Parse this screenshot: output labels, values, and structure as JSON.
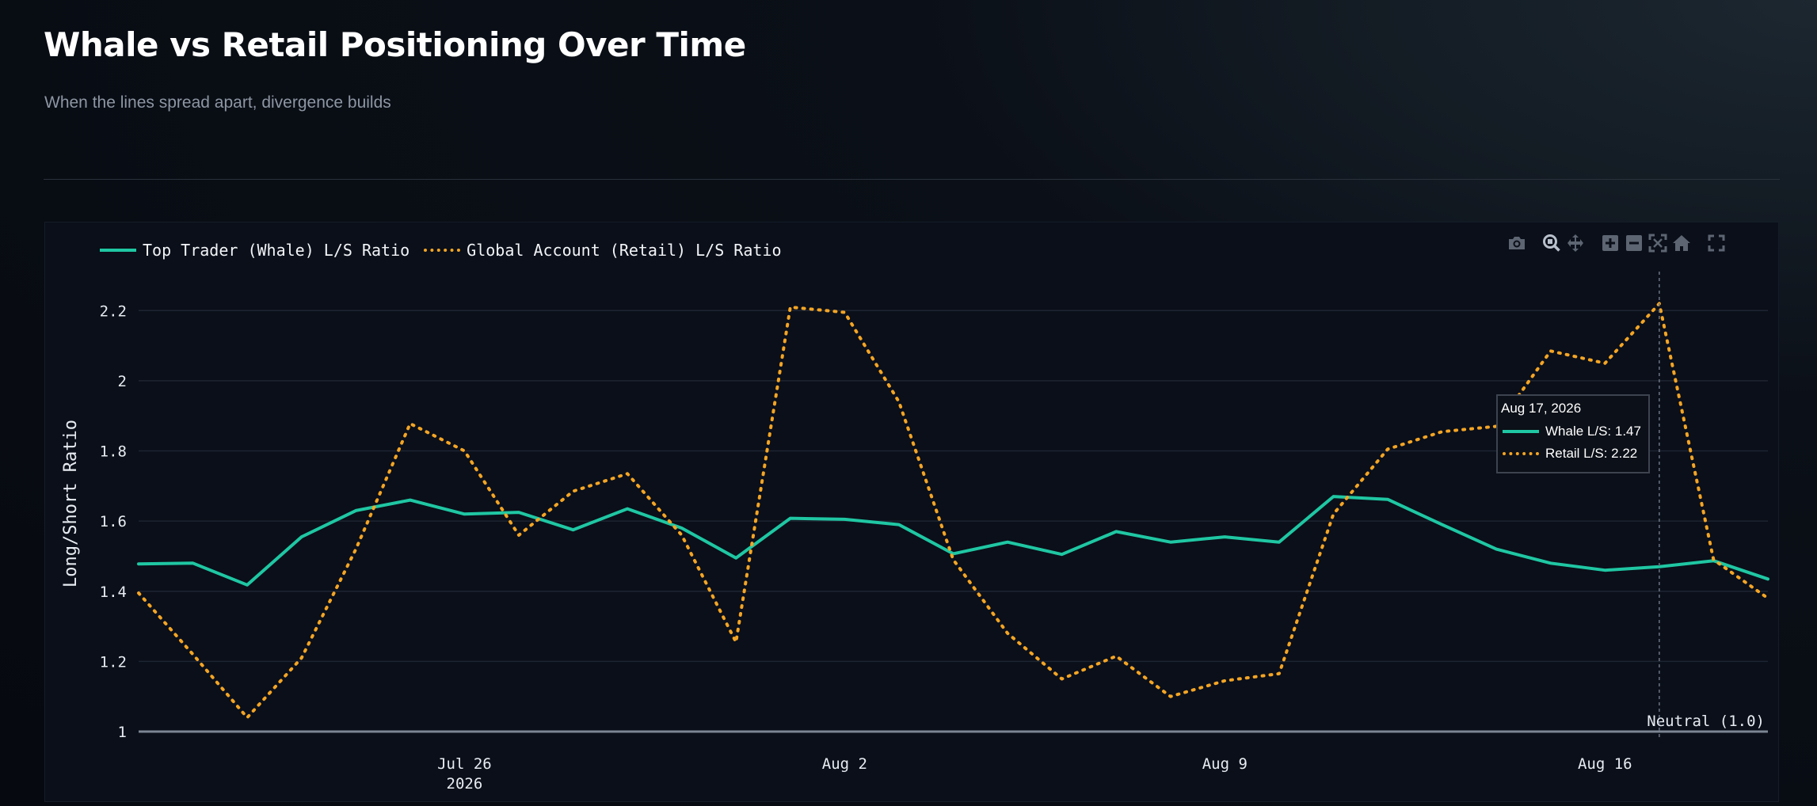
{
  "page": {
    "title": "Whale vs Retail Positioning Over Time",
    "subtitle": "When the lines spread apart, divergence builds"
  },
  "colors": {
    "whale": "#1fc7a3",
    "retail": "#f5a524",
    "grid": "#1e2532",
    "tick_text": "#e8ecf2"
  },
  "modebar": {
    "icons": [
      "camera-icon",
      "zoom-icon",
      "pan-icon",
      "zoom-in-icon",
      "zoom-out-icon",
      "autoscale-icon",
      "reset-axes-icon",
      "fullscreen-icon"
    ]
  },
  "tooltip": {
    "date": "Aug 17, 2026",
    "whale_text": "Whale L/S: 1.47",
    "retail_text": "Retail L/S: 2.22"
  },
  "chart_data": {
    "type": "line",
    "title": "",
    "xlabel": "",
    "ylabel": "Long/Short Ratio",
    "ylim": [
      1.0,
      2.3
    ],
    "yticks": [
      "1",
      "1.2",
      "1.4",
      "1.6",
      "1.8",
      "2",
      "2.2"
    ],
    "xticks": [
      {
        "date": "2026-07-26",
        "label": "Jul 26",
        "sub": "2026"
      },
      {
        "date": "2026-08-02",
        "label": "Aug 2",
        "sub": ""
      },
      {
        "date": "2026-08-09",
        "label": "Aug 9",
        "sub": ""
      },
      {
        "date": "2026-08-16",
        "label": "Aug 16",
        "sub": ""
      }
    ],
    "x": [
      "2026-07-20",
      "2026-07-21",
      "2026-07-22",
      "2026-07-23",
      "2026-07-24",
      "2026-07-25",
      "2026-07-26",
      "2026-07-27",
      "2026-07-28",
      "2026-07-29",
      "2026-07-30",
      "2026-07-31",
      "2026-08-01",
      "2026-08-02",
      "2026-08-03",
      "2026-08-04",
      "2026-08-05",
      "2026-08-06",
      "2026-08-07",
      "2026-08-08",
      "2026-08-09",
      "2026-08-10",
      "2026-08-11",
      "2026-08-12",
      "2026-08-13",
      "2026-08-14",
      "2026-08-15",
      "2026-08-16",
      "2026-08-17",
      "2026-08-18",
      "2026-08-19"
    ],
    "series": [
      {
        "name": "Top Trader (Whale) L/S Ratio",
        "style": "solid",
        "values": [
          1.478,
          1.48,
          1.418,
          1.555,
          1.63,
          1.66,
          1.62,
          1.625,
          1.575,
          1.635,
          1.58,
          1.495,
          1.608,
          1.605,
          1.59,
          1.507,
          1.54,
          1.505,
          1.57,
          1.54,
          1.555,
          1.54,
          1.67,
          1.662,
          1.59,
          1.52,
          1.48,
          1.46,
          1.47,
          1.487,
          1.435
        ]
      },
      {
        "name": "Global Account (Retail) L/S Ratio",
        "style": "dotted",
        "values": [
          1.395,
          1.22,
          1.04,
          1.21,
          1.52,
          1.878,
          1.8,
          1.56,
          1.685,
          1.735,
          1.56,
          1.255,
          2.21,
          2.195,
          1.94,
          1.49,
          1.28,
          1.15,
          1.215,
          1.1,
          1.145,
          1.165,
          1.62,
          1.805,
          1.855,
          1.87,
          2.085,
          2.05,
          2.22,
          1.49,
          1.38
        ]
      }
    ],
    "reference_line": {
      "y": 1.0,
      "label": "Neutral (1.0)"
    },
    "hover": {
      "x": "2026-08-17"
    },
    "grid": true,
    "legend": "top-left"
  }
}
